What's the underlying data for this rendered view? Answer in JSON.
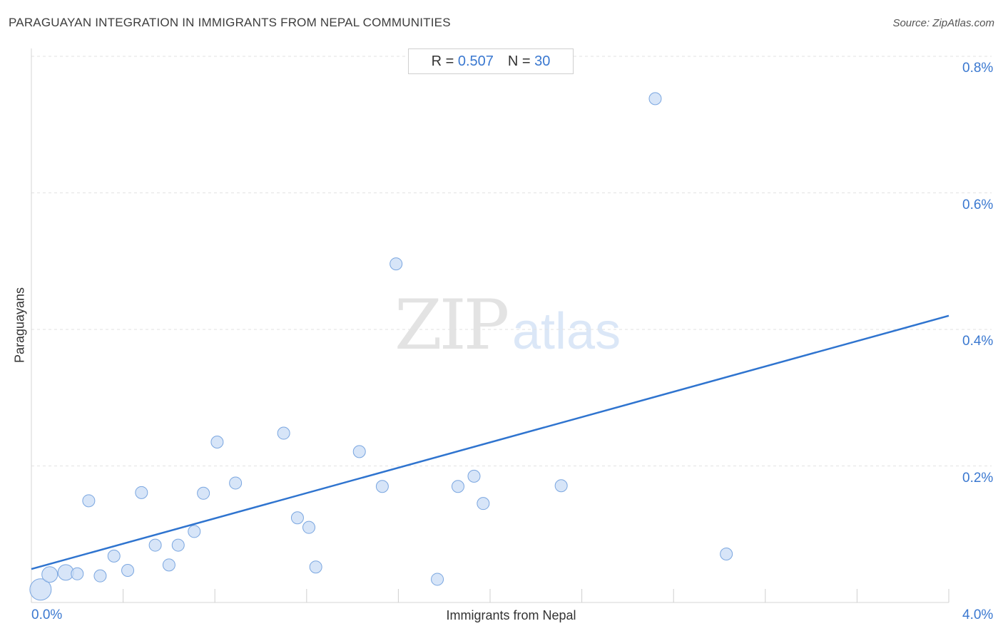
{
  "header": {
    "title": "PARAGUAYAN INTEGRATION IN IMMIGRANTS FROM NEPAL COMMUNITIES",
    "source": "Source: ZipAtlas.com"
  },
  "stats": {
    "r_label": "R =",
    "r_value": "0.507",
    "n_label": "N =",
    "n_value": "30"
  },
  "watermark": {
    "zip": "ZIP",
    "atlas": "atlas"
  },
  "colors": {
    "point_fill": "#c9dcf5",
    "point_stroke": "#7aa6e0",
    "trend": "#2f74cf",
    "grid": "#e2e2e2",
    "accent": "#3a78d0"
  },
  "chart_data": {
    "type": "scatter",
    "title": "PARAGUAYAN INTEGRATION IN IMMIGRANTS FROM NEPAL COMMUNITIES",
    "xlabel": "Immigrants from Nepal",
    "ylabel": "Paraguayans",
    "xlim": [
      0,
      4.0
    ],
    "ylim": [
      0,
      0.8
    ],
    "x_tick_labels": [
      {
        "value": 0,
        "label": "0.0%"
      },
      {
        "value": 4.0,
        "label": "4.0%"
      }
    ],
    "y_tick_labels": [
      {
        "value": 0.2,
        "label": "0.2%"
      },
      {
        "value": 0.4,
        "label": "0.4%"
      },
      {
        "value": 0.6,
        "label": "0.6%"
      },
      {
        "value": 0.8,
        "label": "0.8%"
      }
    ],
    "grid": true,
    "points": [
      {
        "x": 0.04,
        "y": 0.019,
        "size": 3
      },
      {
        "x": 0.08,
        "y": 0.041,
        "size": 2
      },
      {
        "x": 0.15,
        "y": 0.044,
        "size": 2
      },
      {
        "x": 0.2,
        "y": 0.042,
        "size": 1
      },
      {
        "x": 0.25,
        "y": 0.149,
        "size": 1
      },
      {
        "x": 0.3,
        "y": 0.039,
        "size": 1
      },
      {
        "x": 0.36,
        "y": 0.068,
        "size": 1
      },
      {
        "x": 0.42,
        "y": 0.047,
        "size": 1
      },
      {
        "x": 0.48,
        "y": 0.161,
        "size": 1
      },
      {
        "x": 0.54,
        "y": 0.084,
        "size": 1
      },
      {
        "x": 0.6,
        "y": 0.055,
        "size": 1
      },
      {
        "x": 0.64,
        "y": 0.084,
        "size": 1
      },
      {
        "x": 0.71,
        "y": 0.104,
        "size": 1
      },
      {
        "x": 0.75,
        "y": 0.16,
        "size": 1
      },
      {
        "x": 0.81,
        "y": 0.235,
        "size": 1
      },
      {
        "x": 0.89,
        "y": 0.175,
        "size": 1
      },
      {
        "x": 1.1,
        "y": 0.248,
        "size": 1
      },
      {
        "x": 1.16,
        "y": 0.124,
        "size": 1
      },
      {
        "x": 1.21,
        "y": 0.11,
        "size": 1
      },
      {
        "x": 1.24,
        "y": 0.052,
        "size": 1
      },
      {
        "x": 1.43,
        "y": 0.221,
        "size": 1
      },
      {
        "x": 1.53,
        "y": 0.17,
        "size": 1
      },
      {
        "x": 1.59,
        "y": 0.496,
        "size": 1
      },
      {
        "x": 1.77,
        "y": 0.034,
        "size": 1
      },
      {
        "x": 1.86,
        "y": 0.17,
        "size": 1
      },
      {
        "x": 1.93,
        "y": 0.185,
        "size": 1
      },
      {
        "x": 1.97,
        "y": 0.145,
        "size": 1
      },
      {
        "x": 2.31,
        "y": 0.171,
        "size": 1
      },
      {
        "x": 2.72,
        "y": 0.738,
        "size": 1
      },
      {
        "x": 3.03,
        "y": 0.071,
        "size": 1
      }
    ],
    "trendline": {
      "x": [
        0,
        4.0
      ],
      "y": [
        0.049,
        0.42
      ]
    }
  }
}
